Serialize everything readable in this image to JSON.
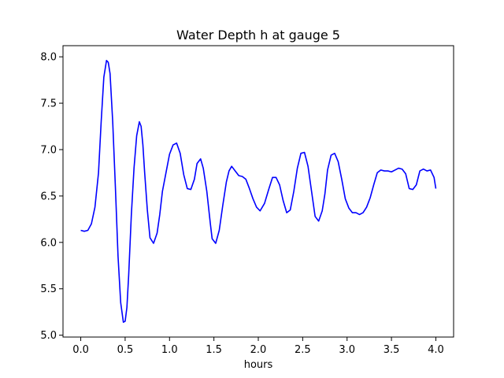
{
  "chart_data": {
    "type": "line",
    "title": "Water Depth h at gauge 5",
    "xlabel": "hours",
    "ylabel": "",
    "xlim": [
      -0.2,
      4.2
    ],
    "ylim": [
      4.98,
      8.12
    ],
    "xticks": [
      0.0,
      0.5,
      1.0,
      1.5,
      2.0,
      2.5,
      3.0,
      3.5,
      4.0
    ],
    "xtick_labels": [
      "0.0",
      "0.5",
      "1.0",
      "1.5",
      "2.0",
      "2.5",
      "3.0",
      "3.5",
      "4.0"
    ],
    "yticks": [
      5.0,
      5.5,
      6.0,
      6.5,
      7.0,
      7.5,
      8.0
    ],
    "ytick_labels": [
      "5.0",
      "5.5",
      "6.0",
      "6.5",
      "7.0",
      "7.5",
      "8.0"
    ],
    "grid": false,
    "legend": "none",
    "series": [
      {
        "color": "#0000ff",
        "x": [
          0.0,
          0.04,
          0.08,
          0.12,
          0.16,
          0.2,
          0.23,
          0.26,
          0.29,
          0.31,
          0.33,
          0.36,
          0.39,
          0.42,
          0.45,
          0.48,
          0.5,
          0.52,
          0.54,
          0.57,
          0.6,
          0.63,
          0.66,
          0.68,
          0.7,
          0.72,
          0.75,
          0.78,
          0.82,
          0.86,
          0.89,
          0.92,
          0.96,
          1.0,
          1.04,
          1.08,
          1.12,
          1.16,
          1.2,
          1.24,
          1.28,
          1.31,
          1.35,
          1.38,
          1.42,
          1.46,
          1.48,
          1.52,
          1.56,
          1.6,
          1.64,
          1.67,
          1.7,
          1.74,
          1.78,
          1.82,
          1.86,
          1.9,
          1.94,
          1.98,
          2.02,
          2.07,
          2.12,
          2.16,
          2.2,
          2.24,
          2.28,
          2.32,
          2.36,
          2.4,
          2.44,
          2.48,
          2.52,
          2.56,
          2.6,
          2.64,
          2.68,
          2.72,
          2.75,
          2.78,
          2.82,
          2.86,
          2.9,
          2.94,
          2.98,
          3.02,
          3.06,
          3.1,
          3.14,
          3.18,
          3.22,
          3.26,
          3.3,
          3.34,
          3.38,
          3.42,
          3.46,
          3.5,
          3.54,
          3.58,
          3.62,
          3.66,
          3.7,
          3.74,
          3.78,
          3.82,
          3.86,
          3.9,
          3.94,
          3.98,
          4.0
        ],
        "y": [
          6.13,
          6.12,
          6.13,
          6.2,
          6.38,
          6.75,
          7.3,
          7.78,
          7.96,
          7.94,
          7.82,
          7.3,
          6.6,
          5.85,
          5.35,
          5.14,
          5.15,
          5.3,
          5.65,
          6.3,
          6.8,
          7.15,
          7.3,
          7.25,
          7.05,
          6.75,
          6.35,
          6.05,
          5.99,
          6.1,
          6.3,
          6.55,
          6.75,
          6.95,
          7.05,
          7.07,
          6.96,
          6.73,
          6.58,
          6.57,
          6.68,
          6.85,
          6.9,
          6.8,
          6.55,
          6.2,
          6.04,
          5.99,
          6.13,
          6.4,
          6.65,
          6.77,
          6.82,
          6.77,
          6.72,
          6.71,
          6.68,
          6.58,
          6.47,
          6.38,
          6.34,
          6.42,
          6.58,
          6.7,
          6.7,
          6.62,
          6.45,
          6.32,
          6.35,
          6.55,
          6.8,
          6.96,
          6.97,
          6.82,
          6.55,
          6.28,
          6.23,
          6.34,
          6.52,
          6.78,
          6.94,
          6.96,
          6.87,
          6.68,
          6.47,
          6.37,
          6.32,
          6.32,
          6.3,
          6.32,
          6.38,
          6.48,
          6.62,
          6.75,
          6.78,
          6.77,
          6.77,
          6.76,
          6.78,
          6.8,
          6.79,
          6.74,
          6.58,
          6.57,
          6.62,
          6.77,
          6.79,
          6.77,
          6.78,
          6.7,
          6.58
        ]
      }
    ]
  }
}
